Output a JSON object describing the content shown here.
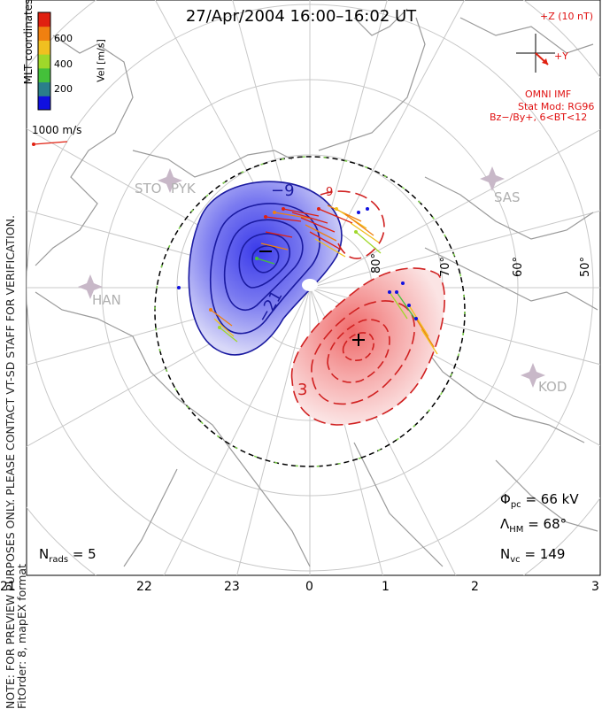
{
  "title": "27/Apr/2004 16:00–16:02 UT",
  "coords_label": "MLT coordinates",
  "note_line1": "NOTE: FOR PREVIEW PURPOSES ONLY. PLEASE CONTACT VT-SD STAFF FOR VERIFICATION.",
  "note_line2": "FitOrder: 8, mapEX format",
  "colorbar": {
    "label": "Vel [m/s]",
    "ticks": [
      "600",
      "400",
      "200"
    ],
    "colors": [
      "#1010e0",
      "#2a7f8a",
      "#44c03a",
      "#9fd82a",
      "#f0c020",
      "#f08010",
      "#e02010"
    ]
  },
  "velocity_scale": "1000 m/s",
  "imf": {
    "z_label": "+Z (10 nT)",
    "y_label": "+Y",
    "source": "OMNI IMF",
    "model_line1": "Stat Mod: RG96",
    "model_line2": "Bz−/By+, 6<BT<12"
  },
  "stations": [
    "STO",
    "PYK",
    "SAS",
    "HAN",
    "KOD"
  ],
  "lat_labels": [
    "80°",
    "70°",
    "60°",
    "50°"
  ],
  "contour_labels": [
    "−9",
    "−21",
    "9",
    "3"
  ],
  "mlt_ticks": [
    "21",
    "22",
    "23",
    "0",
    "1",
    "2",
    "3"
  ],
  "stats": {
    "phi_value": "= 66 kV",
    "lambda_value": "= 68°",
    "nvc_value": "= 149",
    "nrads_value": "= 5"
  }
}
